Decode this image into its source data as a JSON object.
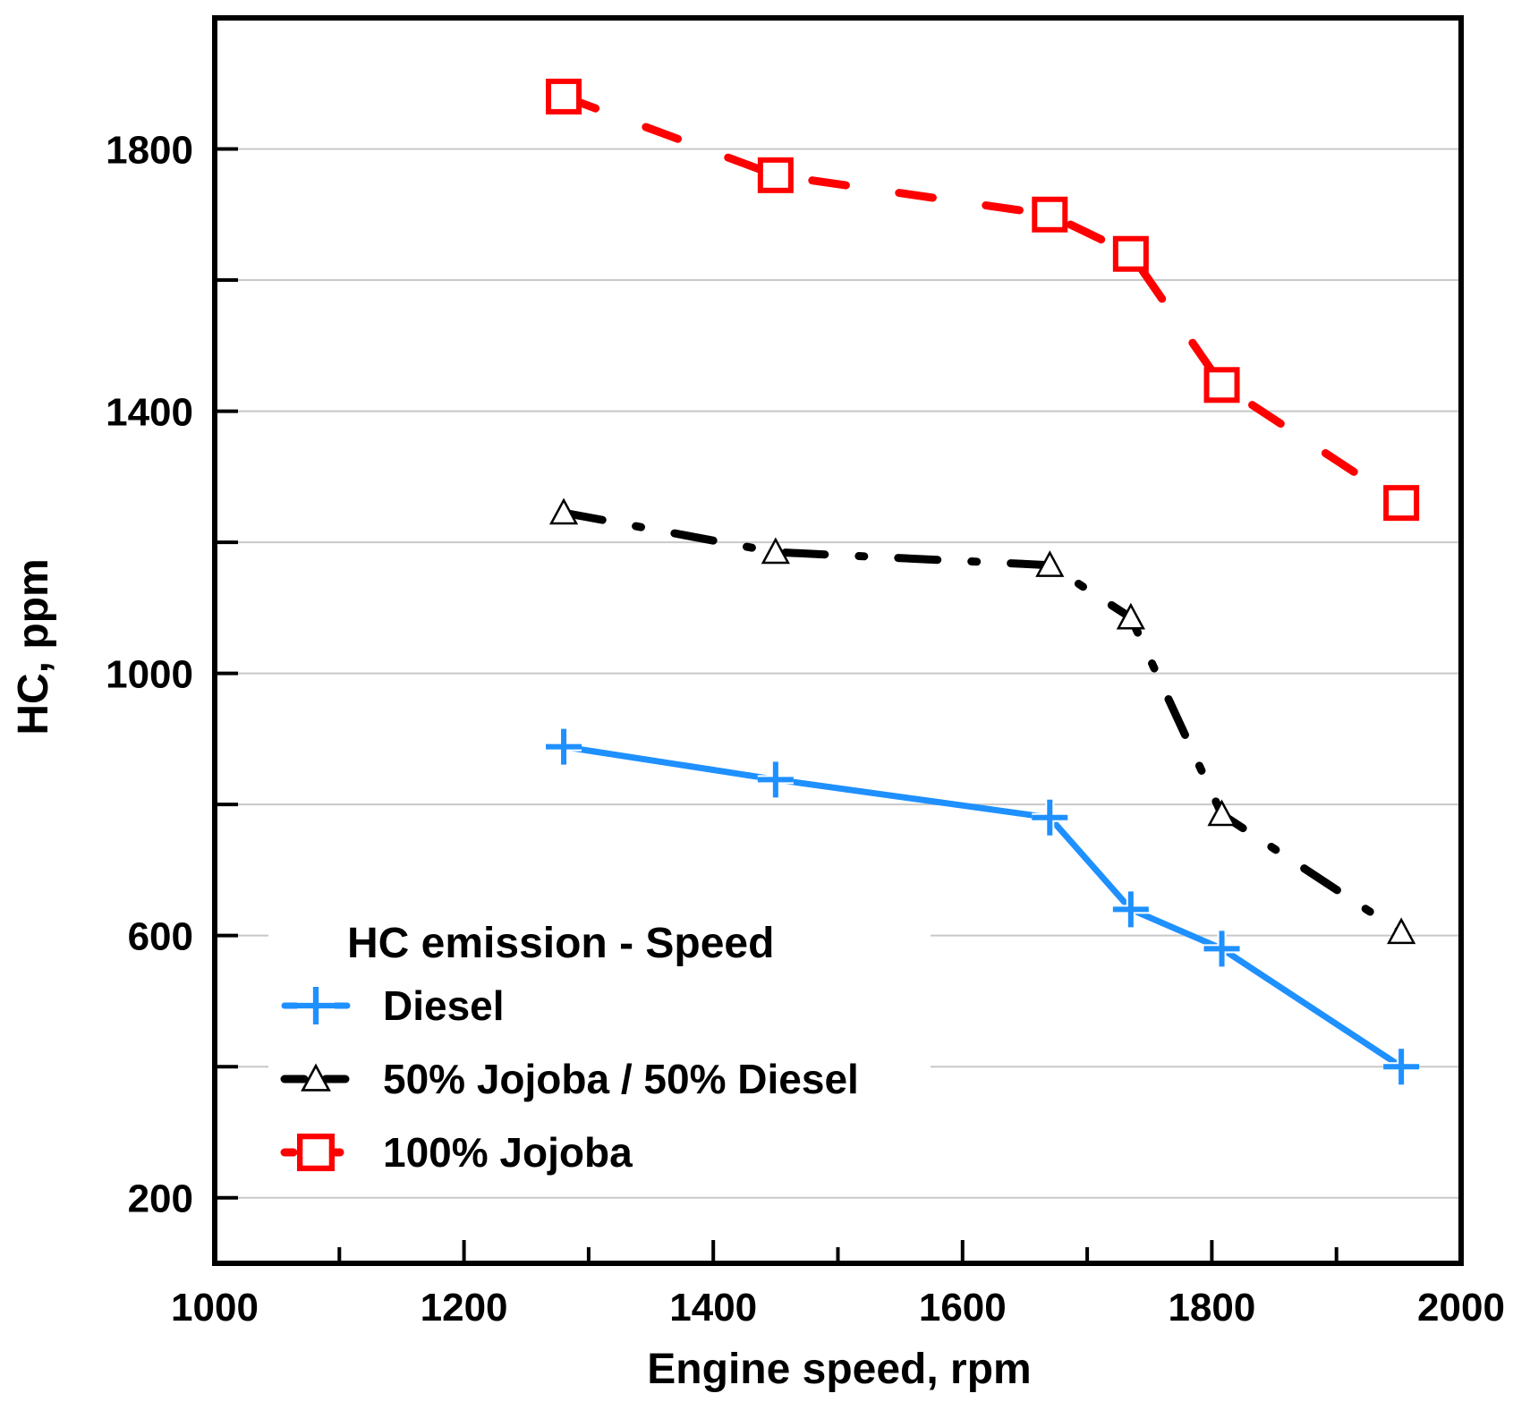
{
  "chart_data": {
    "type": "line",
    "title": "",
    "xlabel": "Engine speed, rpm",
    "ylabel": "HC, ppm",
    "xlim": [
      1000,
      2000
    ],
    "ylim": [
      100,
      2000
    ],
    "x_major_ticks": [
      1000,
      1200,
      1400,
      1600,
      1800,
      2000
    ],
    "x_minor_ticks": [
      1100,
      1300,
      1500,
      1700,
      1900
    ],
    "y_labeled_ticks": [
      200,
      600,
      1000,
      1400,
      1800
    ],
    "y_gridlines": [
      200,
      400,
      600,
      800,
      1000,
      1200,
      1400,
      1600,
      1800
    ],
    "grid": true,
    "legend": {
      "title": "HC emission - Speed",
      "position": "bottom-left"
    },
    "series": [
      {
        "name": "Diesel",
        "color": "#1e90ff",
        "line_style": "solid",
        "marker": "plus",
        "x": [
          1280,
          1450,
          1670,
          1735,
          1808,
          1952
        ],
        "y": [
          888,
          838,
          780,
          640,
          580,
          400
        ]
      },
      {
        "name": "50% Jojoba / 50% Diesel",
        "color": "#000000",
        "line_style": "dash-dot",
        "marker": "triangle",
        "x": [
          1280,
          1450,
          1670,
          1735,
          1808,
          1952
        ],
        "y": [
          1245,
          1185,
          1165,
          1085,
          785,
          605
        ]
      },
      {
        "name": "100% Jojoba",
        "color": "#ff0000",
        "line_style": "dashed",
        "marker": "square",
        "x": [
          1280,
          1450,
          1670,
          1735,
          1808,
          1952
        ],
        "y": [
          1880,
          1760,
          1700,
          1640,
          1440,
          1260
        ]
      }
    ]
  }
}
